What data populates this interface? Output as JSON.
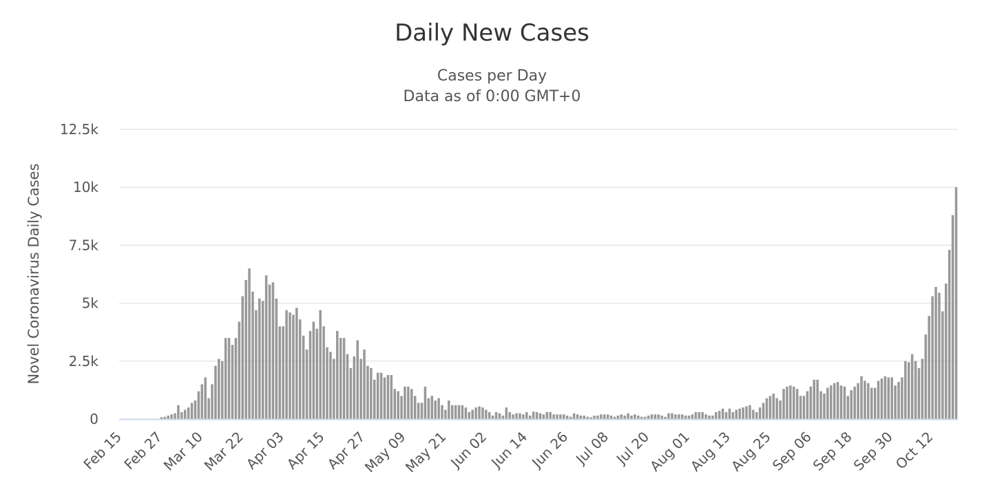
{
  "chart_data": {
    "type": "bar",
    "title": "Daily New Cases",
    "subtitle": [
      "Cases per Day",
      "Data as of 0:00 GMT+0"
    ],
    "ylabel": "Novel Coronavirus Daily Cases",
    "xlabel": "",
    "ylim": [
      0,
      12500
    ],
    "y_ticks": [
      0,
      2500,
      5000,
      7500,
      10000,
      12500
    ],
    "y_tick_labels": [
      "0",
      "2.5k",
      "5k",
      "7.5k",
      "10k",
      "12.5k"
    ],
    "x_ticks": [
      "Feb 15",
      "Feb 27",
      "Mar 10",
      "Mar 22",
      "Apr 03",
      "Apr 15",
      "Apr 27",
      "May 09",
      "May 21",
      "Jun 02",
      "Jun 14",
      "Jun 26",
      "Jul 08",
      "Jul 20",
      "Aug 01",
      "Aug 13",
      "Aug 25",
      "Sep 06",
      "Sep 18",
      "Sep 30",
      "Oct 12"
    ],
    "x_tick_every": 12,
    "start_date": "2020-02-15",
    "grid": true,
    "legend": false,
    "bar_color": "#999999",
    "axis_color": "#ccd6eb",
    "grid_color": "#e6e6e6",
    "values": [
      0,
      0,
      0,
      0,
      0,
      0,
      0,
      0,
      0,
      0,
      0,
      0,
      80,
      100,
      150,
      200,
      250,
      600,
      300,
      400,
      500,
      700,
      800,
      1200,
      1500,
      1800,
      900,
      1500,
      2300,
      2600,
      2500,
      3500,
      3500,
      3200,
      3500,
      4200,
      5300,
      6000,
      6500,
      5500,
      4700,
      5200,
      5100,
      6200,
      5800,
      5900,
      5200,
      4000,
      4000,
      4700,
      4600,
      4500,
      4800,
      4300,
      3600,
      3000,
      3800,
      4200,
      3900,
      4700,
      4000,
      3100,
      2900,
      2600,
      3800,
      3500,
      3500,
      2800,
      2200,
      2700,
      3400,
      2600,
      3000,
      2300,
      2200,
      1700,
      2000,
      2000,
      1800,
      1900,
      1900,
      1300,
      1200,
      1000,
      1400,
      1400,
      1300,
      1000,
      700,
      700,
      1400,
      900,
      1000,
      800,
      900,
      600,
      400,
      800,
      600,
      600,
      600,
      600,
      500,
      300,
      400,
      500,
      550,
      500,
      400,
      300,
      150,
      300,
      250,
      150,
      500,
      300,
      200,
      250,
      250,
      200,
      300,
      150,
      320,
      300,
      250,
      200,
      300,
      300,
      200,
      200,
      200,
      200,
      150,
      100,
      250,
      200,
      150,
      150,
      100,
      80,
      150,
      150,
      200,
      200,
      200,
      150,
      100,
      150,
      200,
      150,
      250,
      150,
      200,
      150,
      100,
      100,
      150,
      200,
      200,
      200,
      150,
      100,
      250,
      250,
      200,
      200,
      200,
      150,
      150,
      200,
      300,
      300,
      300,
      200,
      150,
      150,
      300,
      350,
      450,
      300,
      450,
      300,
      400,
      450,
      500,
      550,
      600,
      400,
      300,
      500,
      700,
      900,
      1000,
      1100,
      900,
      800,
      1300,
      1400,
      1450,
      1400,
      1300,
      1000,
      1000,
      1200,
      1400,
      1700,
      1700,
      1200,
      1100,
      1350,
      1450,
      1550,
      1600,
      1450,
      1400,
      1000,
      1250,
      1400,
      1550,
      1850,
      1650,
      1550,
      1350,
      1350,
      1650,
      1750,
      1850,
      1800,
      1800,
      1450,
      1600,
      1800,
      2500,
      2450,
      2800,
      2500,
      2200,
      2600,
      3650,
      4450,
      5300,
      5700,
      5450,
      4650,
      5850,
      7300,
      8800,
      10000
    ]
  }
}
